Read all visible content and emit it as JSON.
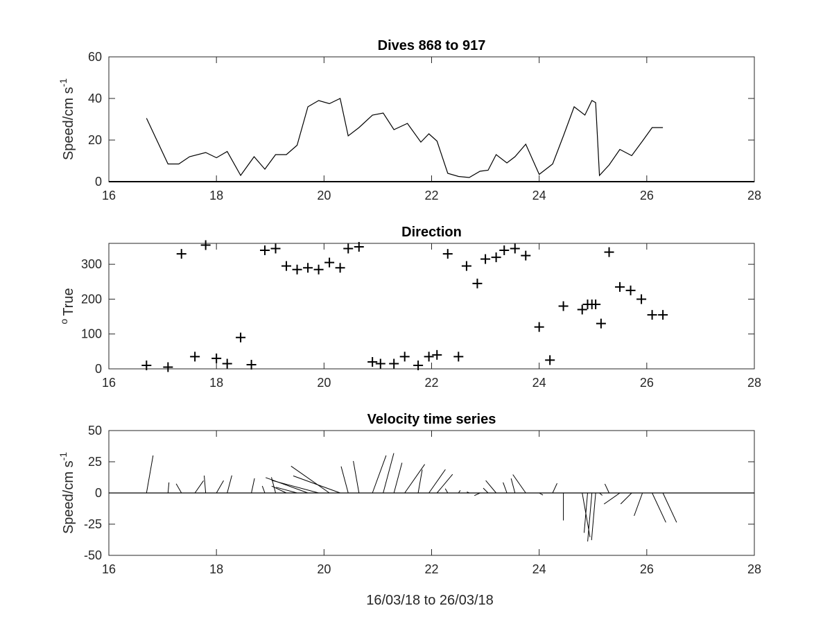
{
  "figure": {
    "xlabel": "16/03/18 to 26/03/18"
  },
  "chart_data": [
    {
      "type": "line",
      "title": "Dives 868 to 917",
      "ylabel": "Speed/cm s",
      "ylabel_superscript": "-1",
      "xlim": [
        16,
        28
      ],
      "ylim": [
        0,
        60
      ],
      "xticks": [
        16,
        18,
        20,
        22,
        24,
        26,
        28
      ],
      "yticks": [
        0,
        20,
        40,
        60
      ],
      "series": [
        {
          "x": [
            16.7,
            17.1,
            17.3,
            17.5,
            17.8,
            18.0,
            18.2,
            18.45,
            18.7,
            18.9,
            19.1,
            19.3,
            19.5,
            19.7,
            19.9,
            20.1,
            20.3,
            20.45,
            20.65,
            20.9,
            21.1,
            21.3,
            21.55,
            21.8,
            21.95,
            22.1,
            22.3,
            22.5,
            22.7,
            22.9,
            23.05,
            23.2,
            23.4,
            23.55,
            23.75,
            24.0,
            24.25,
            24.45,
            24.65,
            24.85,
            24.98,
            25.05,
            25.12,
            25.3,
            25.5,
            25.72,
            25.92,
            26.1,
            26.3
          ],
          "y": [
            30.5,
            8.5,
            8.5,
            12,
            14,
            11.5,
            14.5,
            3,
            12,
            6,
            13,
            13,
            17.5,
            36,
            39,
            37.5,
            40,
            22,
            26,
            32,
            33,
            25,
            28,
            19,
            23,
            19.5,
            4,
            2.5,
            2,
            5,
            5.5,
            13,
            9,
            12,
            18,
            3.5,
            8.5,
            22,
            36,
            32,
            39,
            38,
            3,
            8,
            15.5,
            12.5,
            19.5,
            26,
            26
          ]
        }
      ]
    },
    {
      "type": "scatter",
      "title": "Direction",
      "ylabel": "True",
      "ylabel_prefix": "o",
      "xlim": [
        16,
        28
      ],
      "ylim": [
        0,
        360
      ],
      "xticks": [
        16,
        18,
        20,
        22,
        24,
        26,
        28
      ],
      "yticks": [
        0,
        100,
        200,
        300
      ],
      "marker": "+",
      "series": [
        {
          "x": [
            16.7,
            17.1,
            17.35,
            17.6,
            17.8,
            18.0,
            18.2,
            18.45,
            18.65,
            18.9,
            19.1,
            19.3,
            19.5,
            19.7,
            19.9,
            20.1,
            20.3,
            20.45,
            20.65,
            20.9,
            21.05,
            21.3,
            21.5,
            21.75,
            21.95,
            22.1,
            22.3,
            22.5,
            22.65,
            22.85,
            23.0,
            23.2,
            23.35,
            23.55,
            23.75,
            24.0,
            24.2,
            24.45,
            24.8,
            24.9,
            24.98,
            25.05,
            25.15,
            25.3,
            25.5,
            25.7,
            25.9,
            26.1,
            26.3
          ],
          "y": [
            10,
            5,
            330,
            35,
            355,
            30,
            15,
            90,
            12,
            340,
            345,
            295,
            285,
            290,
            285,
            305,
            290,
            345,
            350,
            20,
            15,
            15,
            35,
            10,
            35,
            40,
            330,
            35,
            295,
            245,
            315,
            320,
            340,
            345,
            325,
            120,
            25,
            180,
            170,
            185,
            185,
            185,
            130,
            335,
            235,
            225,
            200,
            155,
            155
          ]
        }
      ]
    },
    {
      "type": "vector",
      "title": "Velocity time series",
      "ylabel": "Speed/cm s",
      "ylabel_superscript": "-1",
      "xlim": [
        16,
        28
      ],
      "ylim": [
        -50,
        50
      ],
      "xticks": [
        16,
        18,
        20,
        22,
        24,
        26,
        28
      ],
      "yticks": [
        -50,
        -25,
        0,
        25,
        50
      ],
      "series": [
        {
          "x": [
            16.7,
            17.1,
            17.35,
            17.6,
            17.8,
            18.0,
            18.2,
            18.45,
            18.65,
            18.9,
            19.1,
            19.3,
            19.5,
            19.7,
            19.9,
            20.1,
            20.3,
            20.45,
            20.65,
            20.9,
            21.1,
            21.3,
            21.5,
            21.75,
            21.95,
            22.1,
            22.3,
            22.5,
            22.7,
            22.9,
            23.05,
            23.2,
            23.4,
            23.55,
            23.75,
            24.0,
            24.25,
            24.45,
            24.8,
            24.9,
            24.98,
            25.05,
            25.12,
            25.3,
            25.5,
            25.72,
            25.92,
            26.1,
            26.3
          ],
          "speed": [
            30.5,
            8.5,
            8.5,
            12,
            14,
            11.5,
            14.5,
            3,
            12,
            6,
            13,
            13,
            17.5,
            36,
            39,
            37.5,
            40,
            22,
            26,
            32,
            33,
            25,
            28,
            19,
            23,
            19.5,
            4,
            2.5,
            2,
            5,
            5.5,
            13,
            9,
            12,
            18,
            3.5,
            8.5,
            22,
            36,
            32,
            39,
            38,
            3,
            8,
            15.5,
            12.5,
            19.5,
            26,
            26
          ],
          "direction": [
            10,
            5,
            330,
            35,
            355,
            30,
            15,
            90,
            12,
            340,
            345,
            295,
            285,
            290,
            285,
            305,
            290,
            345,
            350,
            20,
            15,
            15,
            35,
            10,
            35,
            40,
            330,
            35,
            295,
            245,
            315,
            320,
            340,
            345,
            325,
            120,
            25,
            180,
            170,
            185,
            185,
            185,
            130,
            335,
            235,
            225,
            200,
            155,
            155
          ]
        }
      ]
    }
  ]
}
